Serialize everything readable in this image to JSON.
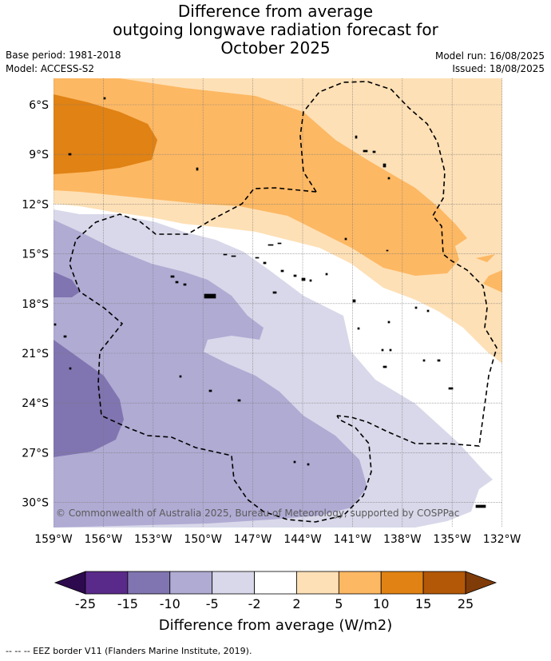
{
  "title": {
    "line1": "Difference from average",
    "line2": "outgoing longwave radiation forecast for",
    "line3": "October 2025"
  },
  "base_period": "Base period: 1981-2018",
  "model": "Model: ACCESS-S2",
  "model_run": "Model run: 16/08/2025",
  "issued": "Issued: 18/08/2025",
  "lat_labels": [
    "6°S",
    "9°S",
    "12°S",
    "15°S",
    "18°S",
    "21°S",
    "24°S",
    "27°S",
    "30°S"
  ],
  "lon_labels": [
    "159°W",
    "156°W",
    "153°W",
    "150°W",
    "147°W",
    "144°W",
    "141°W",
    "138°W",
    "135°W",
    "132°W"
  ],
  "copyright": "© Commonwealth of Australia 2025, Bureau of Meteorology, supported by COSPPac",
  "colorbar": {
    "ticks": [
      "-25",
      "-15",
      "-10",
      "-5",
      "-2",
      "2",
      "5",
      "10",
      "15",
      "25"
    ],
    "label": "Difference from average (W/m2)",
    "colors": {
      "below": "#2d0a4e",
      "n25_15": "#5a2a8a",
      "n15_10": "#8075b0",
      "n10_5": "#b0abd3",
      "n5_2": "#d8d8ea",
      "n2_2": "#ffffff",
      "p2_5": "#fee0b6",
      "p5_10": "#fdb863",
      "p10_15": "#e08214",
      "p15_25": "#b35806",
      "above": "#7f3b08"
    }
  },
  "legend_footer": "-- -- -- EEZ border V11 (Flanders Marine Institute, 2019)."
}
